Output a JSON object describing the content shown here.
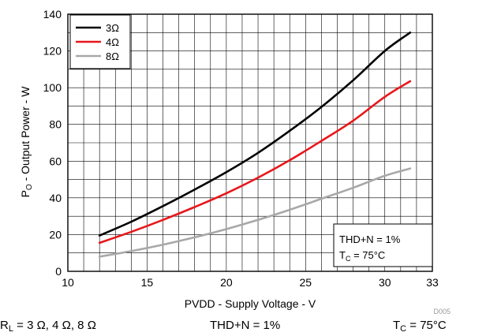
{
  "chart_data": {
    "type": "line",
    "xlabel": "PVDD - Supply Voltage - V",
    "ylabel_prefix": "P",
    "ylabel_sub": "O",
    "ylabel_suffix": " - Output Power - W",
    "xlim": [
      10,
      33
    ],
    "ylim": [
      0,
      140
    ],
    "x_ticks": [
      10,
      15,
      20,
      25,
      30,
      33
    ],
    "y_ticks": [
      0,
      20,
      40,
      60,
      80,
      100,
      120,
      140
    ],
    "x_minor_step": 1,
    "y_minor_step": 10,
    "grid": true,
    "legend_position": "top-left",
    "series": [
      {
        "name": "3Ω",
        "color": "#000000",
        "x": [
          12,
          14,
          16,
          18,
          20,
          22,
          24,
          26,
          28,
          30,
          31.6
        ],
        "y": [
          19.5,
          27,
          35.5,
          44.5,
          54,
          64.5,
          76.5,
          89.5,
          104,
          120,
          130
        ]
      },
      {
        "name": "4Ω",
        "color": "#e8171b",
        "x": [
          12,
          14,
          16,
          18,
          20,
          22,
          24,
          26,
          28,
          30,
          31.6
        ],
        "y": [
          15.5,
          21.5,
          28,
          35,
          42.5,
          51,
          60.5,
          71,
          82,
          95,
          103.5
        ]
      },
      {
        "name": "8Ω",
        "color": "#a8a8a8",
        "x": [
          12,
          14,
          16,
          18,
          20,
          22,
          24,
          26,
          28,
          30,
          31.6
        ],
        "y": [
          8,
          11,
          14.5,
          18.5,
          23,
          28,
          33.5,
          39.5,
          45.5,
          52,
          56
        ]
      }
    ],
    "annotation": {
      "line1": "THD+N = 1%",
      "line2_prefix": "T",
      "line2_sub": "C",
      "line2_suffix": " = 75°C"
    },
    "figure_id": "D005"
  },
  "captions": {
    "rl_prefix": "R",
    "rl_sub": "L",
    "rl_suffix": " = 3 Ω, 4 Ω, 8 Ω",
    "thd": "THD+N = 1%",
    "tc_prefix": "T",
    "tc_sub": "C",
    "tc_suffix": " = 75°C"
  }
}
